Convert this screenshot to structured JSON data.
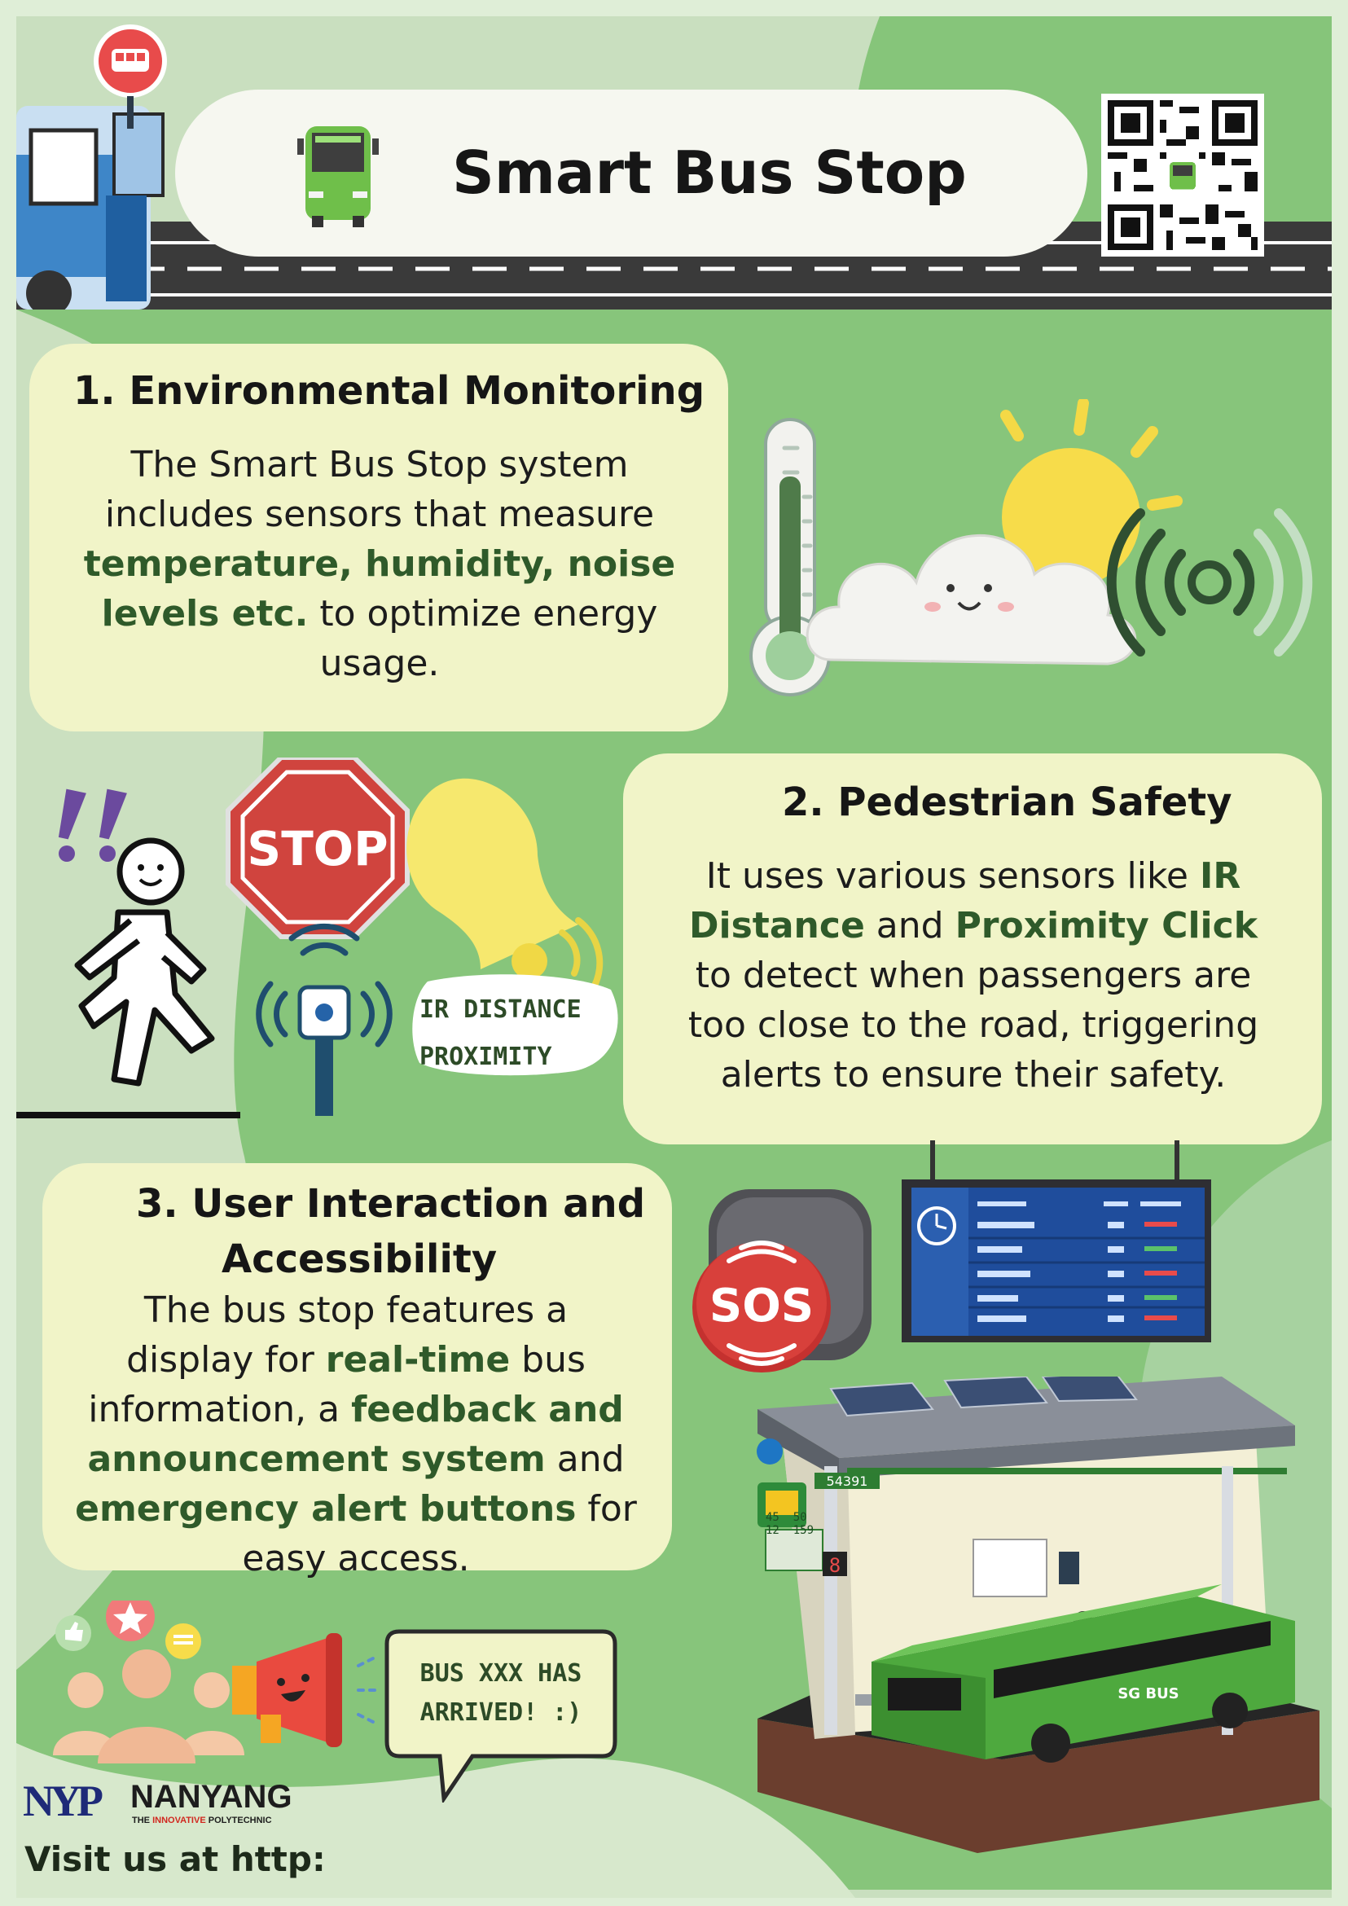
{
  "header": {
    "title": "Smart Bus Stop",
    "bus_stop_sign_icon": "bus-stop-sign-icon",
    "bus_icon": "bus-front-icon",
    "qr_icon": "qr-code-icon"
  },
  "sections": [
    {
      "title": "1. Environmental Monitoring",
      "body_lines": [
        [
          {
            "t": "The Smart Bus Stop system",
            "h": false
          }
        ],
        [
          {
            "t": "includes sensors that measure",
            "h": false
          }
        ],
        [
          {
            "t": "temperature, humidity, noise",
            "h": true
          }
        ],
        [
          {
            "t": "levels etc.",
            "h": true
          },
          {
            "t": " to optimize energy",
            "h": false
          }
        ],
        [
          {
            "t": "usage.",
            "h": false
          }
        ]
      ]
    },
    {
      "title": "2. Pedestrian Safety",
      "body_lines": [
        [
          {
            "t": "It uses various sensors like ",
            "h": false
          },
          {
            "t": "IR",
            "h": true
          }
        ],
        [
          {
            "t": "Distance",
            "h": true
          },
          {
            "t": " and ",
            "h": false
          },
          {
            "t": "Proximity Click",
            "h": true
          }
        ],
        [
          {
            "t": "to detect when passengers are",
            "h": false
          }
        ],
        [
          {
            "t": "too close to the road, triggering",
            "h": false
          }
        ],
        [
          {
            "t": "alerts to ensure their safety.",
            "h": false
          }
        ]
      ]
    },
    {
      "title_line1": "3. User Interaction and",
      "title_line2": "Accessibility",
      "body_lines": [
        [
          {
            "t": "The bus stop features a",
            "h": false
          }
        ],
        [
          {
            "t": "display for ",
            "h": false
          },
          {
            "t": "real-time",
            "h": true
          },
          {
            "t": " bus",
            "h": false
          }
        ],
        [
          {
            "t": "information, a ",
            "h": false
          },
          {
            "t": "feedback and",
            "h": true
          }
        ],
        [
          {
            "t": "announcement system",
            "h": true
          },
          {
            "t": " and",
            "h": false
          }
        ],
        [
          {
            "t": "emergency alert buttons",
            "h": true
          },
          {
            "t": " for",
            "h": false
          }
        ],
        [
          {
            "t": "easy access.",
            "h": false
          }
        ]
      ]
    }
  ],
  "illustrations": {
    "stop_sign": "STOP",
    "ir_badge_line1": "IR DISTANCE",
    "ir_badge_line2": "PROXIMITY",
    "sos_button": "SOS",
    "speech_bubble_line1": "BUS XXX HAS",
    "speech_bubble_line2": "ARRIVED! :)",
    "model_stop_number": "54391",
    "model_route_numbers": [
      "45",
      "50",
      "12",
      "159"
    ],
    "model_bus_label": "SG BUS",
    "model_display_digit": "8"
  },
  "footer": {
    "logo_abbr": "NYP",
    "logo_name": "NANYANG",
    "logo_tagline_pre": "THE ",
    "logo_tagline_accent": "INNOVATIVE",
    "logo_tagline_post": " POLYTECHNIC",
    "link_text": "Visit us at http:"
  },
  "colors": {
    "background_light": "#dfeed7",
    "background_green": "#86c57a",
    "box_fill": "#f1f4c8",
    "highlight_text": "#2f5a2a",
    "stop_red": "#d0443e",
    "nyp_red": "#d1271f",
    "nyp_blue": "#1e2a78"
  }
}
